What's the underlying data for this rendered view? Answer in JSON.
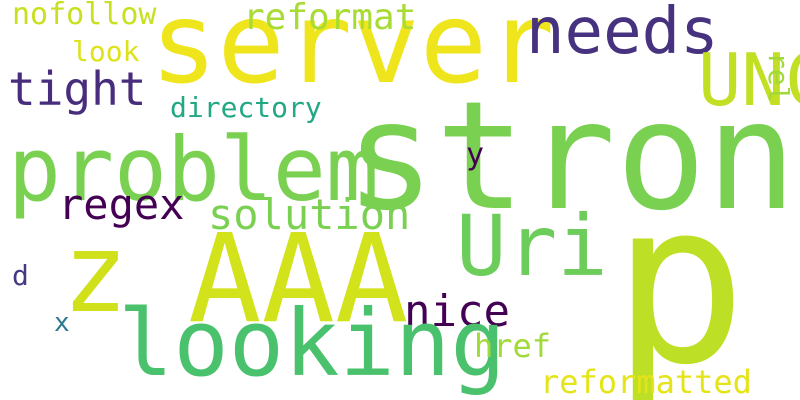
{
  "cloud": {
    "words": {
      "server": {
        "text": "server",
        "color": "#efe51c"
      },
      "strong": {
        "text": "strong",
        "color": "#7ad151"
      },
      "p": {
        "text": "p",
        "color": "#bddf26"
      },
      "problem": {
        "text": "problem",
        "color": "#7ad151"
      },
      "aaa": {
        "text": "AAA",
        "color": "#d2e21b"
      },
      "looking": {
        "text": "looking",
        "color": "#4ac16d"
      },
      "z": {
        "text": "z",
        "color": "#d0e11c"
      },
      "uri": {
        "text": "Uri",
        "color": "#6ccd5a"
      },
      "unc": {
        "text": "UNC",
        "color": "#c2df23"
      },
      "needs": {
        "text": "needs",
        "color": "#46327e"
      },
      "tight": {
        "text": "tight",
        "color": "#472d7b"
      },
      "regex": {
        "text": "regex",
        "color": "#440154"
      },
      "solution": {
        "text": "solution",
        "color": "#7ad151"
      },
      "nice": {
        "text": "nice",
        "color": "#440154"
      },
      "reformat": {
        "text": "reformat",
        "color": "#a8db34"
      },
      "nofollow": {
        "text": "nofollow",
        "color": "#c8e020"
      },
      "look": {
        "text": "look",
        "color": "#dde318"
      },
      "directory": {
        "text": "directory",
        "color": "#22a884"
      },
      "href": {
        "text": "href",
        "color": "#a0da39"
      },
      "reformatted": {
        "text": "reformatted",
        "color": "#e5e419"
      },
      "rel": {
        "text": "rel",
        "color": "#a0da39"
      },
      "y": {
        "text": "y",
        "color": "#440154"
      },
      "d": {
        "text": "d",
        "color": "#443a83"
      },
      "x": {
        "text": "x",
        "color": "#2a788e"
      }
    }
  }
}
